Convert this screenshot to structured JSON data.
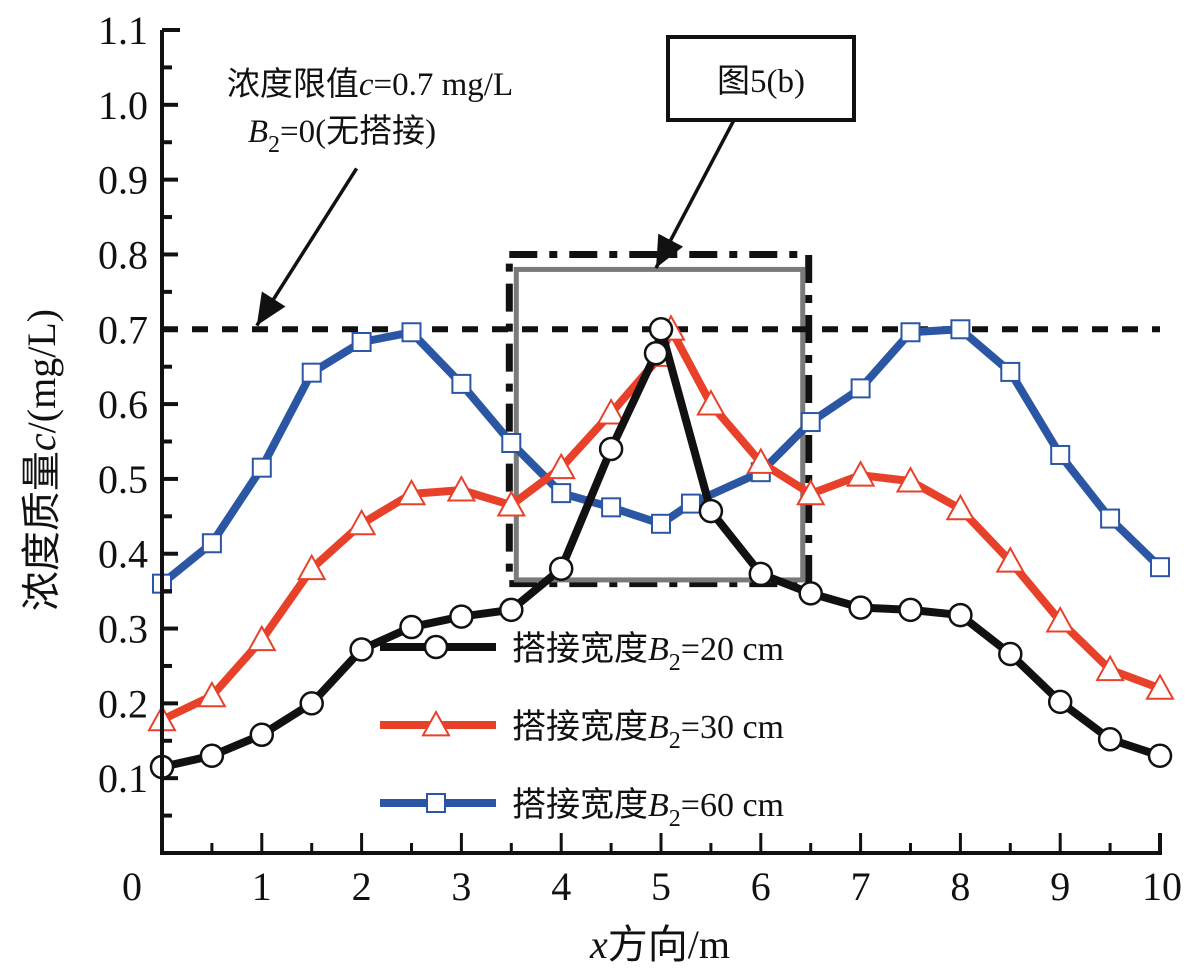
{
  "chart_data": {
    "type": "line",
    "title": "",
    "xlabel": "x方向/m",
    "xlabel_italic_prefix": "x",
    "xlabel_rest": "方向/m",
    "ylabel": "浓度质量c/(mg/L)",
    "ylabel_parts": [
      "浓度质量",
      "c",
      "/(mg/L)"
    ],
    "xlim": [
      0,
      10
    ],
    "ylim": [
      0,
      1.1
    ],
    "x_ticks": [
      0,
      1,
      2,
      3,
      4,
      5,
      6,
      7,
      8,
      9,
      10
    ],
    "x_tick_labels": [
      "0",
      "1",
      "2",
      "3",
      "4",
      "5",
      "6",
      "7",
      "8",
      "9",
      "10"
    ],
    "x_minor_step": 0.5,
    "y_ticks": [
      0.1,
      0.2,
      0.3,
      0.4,
      0.5,
      0.6,
      0.7,
      0.8,
      0.9,
      1.0,
      1.1
    ],
    "y_tick_labels": [
      "0.1",
      "0.2",
      "0.3",
      "0.4",
      "0.5",
      "0.6",
      "0.7",
      "0.8",
      "0.9",
      "1.0",
      "1.1"
    ],
    "y_minor_step": 0.05,
    "grid": false,
    "legend_position": "bottom-center",
    "series": [
      {
        "name": "搭接宽度B2=20 cm",
        "legend_prefix": "搭接宽度",
        "legend_var": "B",
        "legend_sub": "2",
        "legend_suffix": "=20 cm",
        "color": "#111111",
        "marker": "circle",
        "x": [
          0,
          0.5,
          1,
          1.5,
          2,
          2.5,
          3,
          3.5,
          4,
          4.5,
          4.95,
          5.0,
          5.5,
          6,
          6.5,
          7,
          7.5,
          8,
          8.5,
          9,
          9.5,
          10
        ],
        "values": [
          0.115,
          0.13,
          0.158,
          0.2,
          0.272,
          0.302,
          0.316,
          0.325,
          0.38,
          0.54,
          0.668,
          0.7,
          0.457,
          0.373,
          0.347,
          0.328,
          0.325,
          0.318,
          0.266,
          0.202,
          0.152,
          0.13
        ]
      },
      {
        "name": "搭接宽度B2=30 cm",
        "legend_prefix": "搭接宽度",
        "legend_var": "B",
        "legend_sub": "2",
        "legend_suffix": "=30 cm",
        "color": "#e8412a",
        "marker": "triangle",
        "x": [
          0,
          0.5,
          1,
          1.5,
          2,
          2.5,
          3,
          3.5,
          4,
          4.5,
          5.0,
          5.1,
          5.5,
          6,
          6.5,
          7,
          7.5,
          8,
          8.5,
          9,
          9.5,
          10
        ],
        "values": [
          0.178,
          0.21,
          0.285,
          0.38,
          0.44,
          0.48,
          0.485,
          0.465,
          0.515,
          0.588,
          0.665,
          0.7,
          0.6,
          0.522,
          0.48,
          0.505,
          0.497,
          0.46,
          0.39,
          0.31,
          0.245,
          0.22
        ]
      },
      {
        "name": "搭接宽度B2=60 cm",
        "legend_prefix": "搭接宽度",
        "legend_var": "B",
        "legend_sub": "2",
        "legend_suffix": "=60 cm",
        "color": "#2b56a3",
        "marker": "square",
        "x": [
          0,
          0.5,
          1,
          1.5,
          2,
          2.5,
          3,
          3.5,
          4,
          4.5,
          5,
          5.3,
          6,
          6.5,
          7,
          7.5,
          8,
          8.5,
          9,
          9.5,
          10
        ],
        "values": [
          0.36,
          0.414,
          0.515,
          0.642,
          0.683,
          0.696,
          0.627,
          0.548,
          0.481,
          0.462,
          0.44,
          0.467,
          0.509,
          0.576,
          0.621,
          0.696,
          0.7,
          0.643,
          0.532,
          0.447,
          0.382
        ]
      }
    ],
    "reference_line": {
      "y": 0.7,
      "style": "dashed",
      "color": "#111111",
      "x_range": [
        0,
        10
      ]
    },
    "annotations": [
      {
        "id": "limit",
        "line1_prefix": "浓度限值",
        "line1_var": "c",
        "line1_suffix": "=0.7 mg/L",
        "line2_var": "B",
        "line2_sub": "2",
        "line2_suffix": "=0(无搭接)",
        "arrow_from": [
          1.95,
          0.915
        ],
        "arrow_to": [
          0.95,
          0.705
        ]
      },
      {
        "id": "fig5b",
        "text": "图5(b)",
        "arrow_from": [
          5.75,
          0.97
        ],
        "arrow_to": [
          4.95,
          0.775
        ]
      }
    ],
    "highlight_boxes": [
      {
        "name": "outer-dashdot-box",
        "x_range": [
          3.48,
          6.48
        ],
        "y_range": [
          0.36,
          0.8
        ],
        "style": "dash-dot",
        "color": "#111111"
      },
      {
        "name": "inner-gray-box",
        "x_range": [
          3.55,
          6.42
        ],
        "y_range": [
          0.365,
          0.78
        ],
        "style": "solid",
        "color": "#7a7a7a"
      }
    ]
  }
}
